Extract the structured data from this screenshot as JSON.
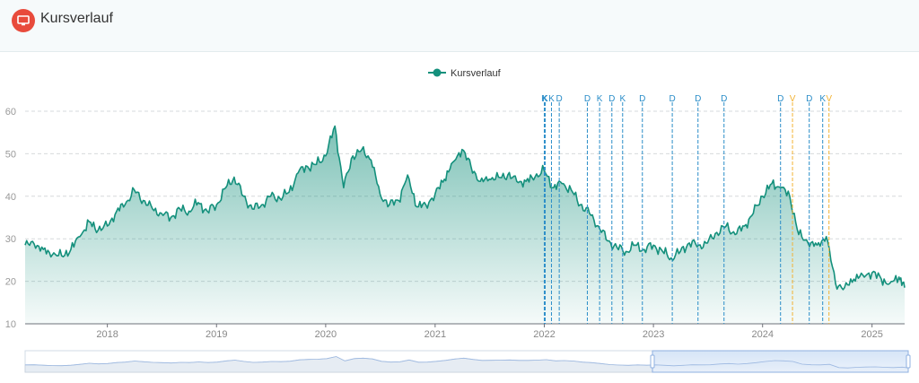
{
  "header": {
    "title": "Kursverlauf",
    "icon": "monitor-icon",
    "icon_color": "#e84b3c"
  },
  "legend": {
    "label": "Kursverlauf",
    "color": "#14907c"
  },
  "colors": {
    "line": "#14907c",
    "d_marker": "#2a8dc8",
    "k_marker": "#2a8dc8",
    "v_marker": "#f2b233"
  },
  "chart_data": {
    "type": "area",
    "title": "",
    "xlabel": "",
    "ylabel": "",
    "ylim": [
      10,
      60
    ],
    "y_ticks": [
      10,
      20,
      30,
      40,
      50,
      60
    ],
    "x_ticks": [
      "2018",
      "2019",
      "2020",
      "2021",
      "2022",
      "2023",
      "2024",
      "2025"
    ],
    "xlim": [
      "2017-04-01",
      "2025-04-20"
    ],
    "grid": "horizontal-dashed",
    "legend_position": "top-center",
    "series": [
      {
        "name": "Kursverlauf",
        "x": [
          "2017-04-01",
          "2017-05-01",
          "2017-06-01",
          "2017-07-01",
          "2017-08-01",
          "2017-09-01",
          "2017-10-01",
          "2017-11-01",
          "2017-12-01",
          "2018-01-01",
          "2018-02-01",
          "2018-03-01",
          "2018-04-01",
          "2018-05-01",
          "2018-06-01",
          "2018-07-01",
          "2018-08-01",
          "2018-09-01",
          "2018-10-01",
          "2018-11-01",
          "2018-12-01",
          "2019-01-01",
          "2019-02-01",
          "2019-03-01",
          "2019-04-01",
          "2019-05-01",
          "2019-06-01",
          "2019-07-01",
          "2019-08-01",
          "2019-09-01",
          "2019-10-01",
          "2019-11-01",
          "2019-12-01",
          "2020-01-01",
          "2020-02-01",
          "2020-03-01",
          "2020-04-01",
          "2020-05-01",
          "2020-06-01",
          "2020-07-01",
          "2020-08-01",
          "2020-09-01",
          "2020-10-01",
          "2020-11-01",
          "2020-12-01",
          "2021-01-01",
          "2021-02-01",
          "2021-03-01",
          "2021-04-01",
          "2021-05-01",
          "2021-06-01",
          "2021-07-01",
          "2021-08-01",
          "2021-09-01",
          "2021-10-01",
          "2021-11-01",
          "2021-12-01",
          "2022-01-01",
          "2022-02-01",
          "2022-03-01",
          "2022-04-01",
          "2022-05-01",
          "2022-06-01",
          "2022-07-01",
          "2022-08-01",
          "2022-09-01",
          "2022-10-01",
          "2022-11-01",
          "2022-12-01",
          "2023-01-01",
          "2023-02-01",
          "2023-03-01",
          "2023-04-01",
          "2023-05-01",
          "2023-06-01",
          "2023-07-01",
          "2023-08-01",
          "2023-09-01",
          "2023-10-01",
          "2023-11-01",
          "2023-12-01",
          "2024-01-01",
          "2024-02-01",
          "2024-03-01",
          "2024-04-01",
          "2024-05-01",
          "2024-06-01",
          "2024-07-01",
          "2024-08-01",
          "2024-09-01",
          "2024-10-01",
          "2024-11-01",
          "2024-12-01",
          "2025-01-01",
          "2025-02-01",
          "2025-03-01",
          "2025-04-01",
          "2025-04-20"
        ],
        "values": [
          28.5,
          28.8,
          27.5,
          26.2,
          26.0,
          27.5,
          30.5,
          34.0,
          32.0,
          33.0,
          36.5,
          38.0,
          41.5,
          39.0,
          37.0,
          36.0,
          35.0,
          37.0,
          36.5,
          38.5,
          36.5,
          38.0,
          42.0,
          44.5,
          40.0,
          37.0,
          38.0,
          40.0,
          39.5,
          41.0,
          45.5,
          47.0,
          47.5,
          49.5,
          56.5,
          42.0,
          49.5,
          51.0,
          48.5,
          40.5,
          38.0,
          39.0,
          45.0,
          37.5,
          38.0,
          40.5,
          44.0,
          48.0,
          51.0,
          47.0,
          43.5,
          44.0,
          44.5,
          45.0,
          43.5,
          43.5,
          44.5,
          46.0,
          42.0,
          43.0,
          41.5,
          38.0,
          36.0,
          33.0,
          29.5,
          28.0,
          27.0,
          28.5,
          27.5,
          28.5,
          27.0,
          25.5,
          27.0,
          29.0,
          28.5,
          29.0,
          31.5,
          33.0,
          31.0,
          33.0,
          36.0,
          40.0,
          43.0,
          42.0,
          40.0,
          31.0,
          29.0,
          28.5,
          30.5,
          19.5,
          18.5,
          20.5,
          21.5,
          22.0,
          20.5,
          19.5,
          21.0,
          18.5
        ]
      }
    ],
    "events": [
      {
        "date": "2022-01-01",
        "label": "K",
        "type": "K"
      },
      {
        "date": "2022-01-04",
        "label": "K",
        "type": "K"
      },
      {
        "date": "2022-01-25",
        "label": "K",
        "type": "K"
      },
      {
        "date": "2022-02-20",
        "label": "D",
        "type": "D"
      },
      {
        "date": "2022-05-25",
        "label": "D",
        "type": "D"
      },
      {
        "date": "2022-07-05",
        "label": "K",
        "type": "K"
      },
      {
        "date": "2022-08-15",
        "label": "D",
        "type": "D"
      },
      {
        "date": "2022-09-20",
        "label": "K",
        "type": "K"
      },
      {
        "date": "2022-11-25",
        "label": "D",
        "type": "D"
      },
      {
        "date": "2023-03-05",
        "label": "D",
        "type": "D"
      },
      {
        "date": "2023-05-30",
        "label": "D",
        "type": "D"
      },
      {
        "date": "2023-08-25",
        "label": "D",
        "type": "D"
      },
      {
        "date": "2024-03-01",
        "label": "D",
        "type": "D"
      },
      {
        "date": "2024-04-10",
        "label": "V",
        "type": "V"
      },
      {
        "date": "2024-06-05",
        "label": "D",
        "type": "D"
      },
      {
        "date": "2024-07-20",
        "label": "K",
        "type": "K"
      },
      {
        "date": "2024-08-10",
        "label": "V",
        "type": "V"
      }
    ]
  }
}
